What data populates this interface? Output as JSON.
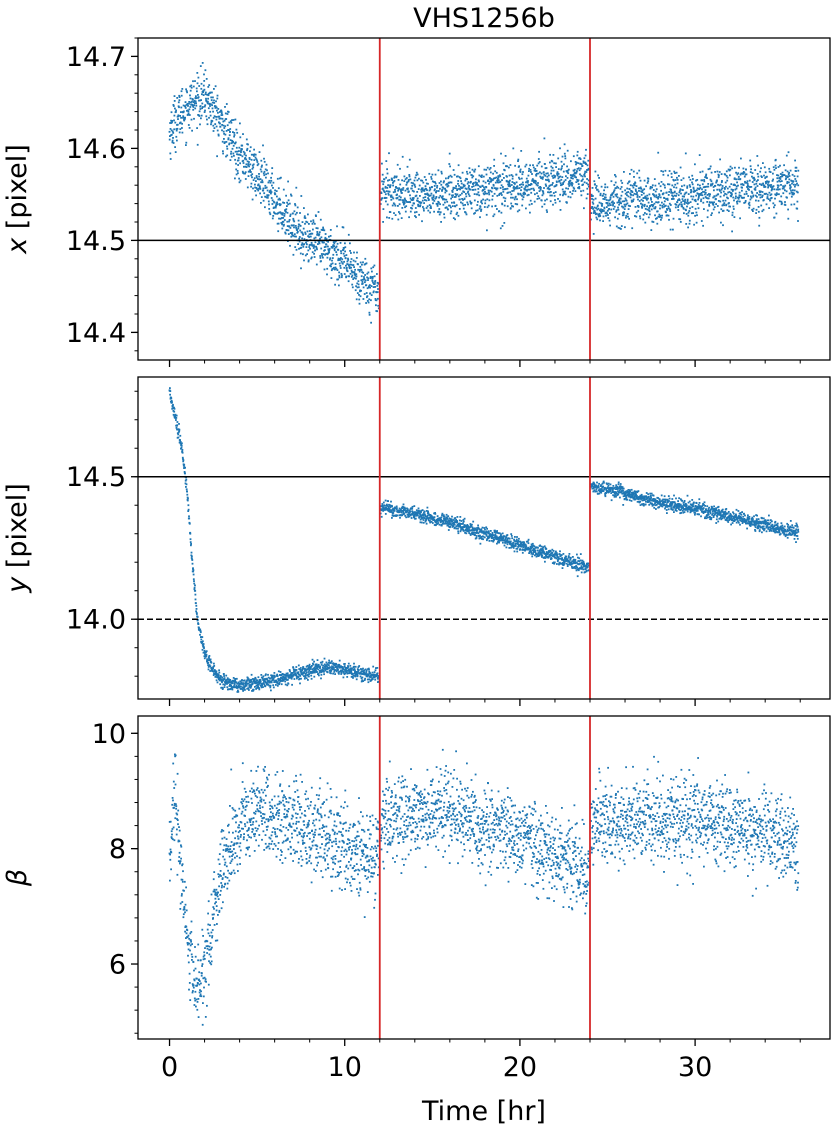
{
  "figure": {
    "title": "VHS1256b",
    "xlabel": "Time [hr]"
  },
  "colors": {
    "points": "#1f77b4",
    "segment_lines": "#d62728",
    "reference_lines": "#000000"
  },
  "chart_data": [
    {
      "type": "scatter",
      "title": "VHS1256b",
      "xlabel": "",
      "ylabel_var": "x",
      "ylabel_unit": " [pixel]",
      "xlim": [
        -1.8,
        37.7
      ],
      "ylim": [
        14.37,
        14.72
      ],
      "yticks": [
        14.4,
        14.5,
        14.6,
        14.7
      ],
      "ytick_labels": [
        "14.4",
        "14.5",
        "14.6",
        "14.7"
      ],
      "minor_ystep": 0.02,
      "hlines": [
        {
          "y": 14.5,
          "style": "solid"
        }
      ],
      "vlines": [
        12,
        24
      ],
      "trend_x": [
        0,
        0.3,
        1,
        2,
        3,
        4,
        5,
        6,
        7,
        8,
        9,
        10,
        11,
        11.95,
        12.05,
        14,
        16,
        18,
        20,
        22,
        23.95,
        24.05,
        26,
        28,
        30,
        32,
        34,
        35.9
      ],
      "trend_y": [
        14.615,
        14.63,
        14.645,
        14.658,
        14.625,
        14.595,
        14.57,
        14.545,
        14.52,
        14.5,
        14.49,
        14.475,
        14.458,
        14.445,
        14.555,
        14.55,
        14.55,
        14.555,
        14.56,
        14.565,
        14.575,
        14.54,
        14.545,
        14.545,
        14.55,
        14.555,
        14.558,
        14.56
      ],
      "scatter_sigma": 0.014
    },
    {
      "type": "scatter",
      "xlabel": "",
      "ylabel_var": "y",
      "ylabel_unit": " [pixel]",
      "xlim": [
        -1.8,
        37.7
      ],
      "ylim": [
        13.72,
        14.85
      ],
      "yticks": [
        14.0,
        14.5
      ],
      "ytick_labels": [
        "14.0",
        "14.5"
      ],
      "minor_ystep": 0.1,
      "hlines": [
        {
          "y": 14.5,
          "style": "solid"
        },
        {
          "y": 14.0,
          "style": "dashed"
        }
      ],
      "vlines": [
        12,
        24
      ],
      "trend_x": [
        0,
        0.3,
        0.7,
        1.0,
        1.3,
        1.6,
        2.0,
        2.5,
        3,
        4,
        5,
        6,
        7,
        8,
        9,
        10,
        11,
        11.95,
        12.05,
        14,
        16,
        18,
        20,
        22,
        23.95,
        24.05,
        26,
        28,
        30,
        32,
        34,
        35.9
      ],
      "trend_y": [
        14.8,
        14.72,
        14.6,
        14.45,
        14.2,
        14.0,
        13.88,
        13.82,
        13.78,
        13.77,
        13.775,
        13.79,
        13.8,
        13.82,
        13.83,
        13.82,
        13.81,
        13.8,
        14.39,
        14.37,
        14.34,
        14.3,
        14.26,
        14.22,
        14.18,
        14.47,
        14.44,
        14.41,
        14.39,
        14.36,
        14.33,
        14.3
      ],
      "scatter_sigma": 0.012
    },
    {
      "type": "scatter",
      "xlabel": "Time [hr]",
      "ylabel_var": "β",
      "ylabel_unit": "",
      "xlim": [
        -1.8,
        37.7
      ],
      "ylim": [
        4.7,
        10.3
      ],
      "yticks": [
        6,
        8,
        10
      ],
      "ytick_labels": [
        "6",
        "8",
        "10"
      ],
      "minor_ystep": 0.4,
      "hlines": [],
      "vlines": [
        12,
        24
      ],
      "xticks": [
        0,
        10,
        20,
        30
      ],
      "xtick_labels": [
        "0",
        "10",
        "20",
        "30"
      ],
      "trend_x": [
        0,
        0.3,
        0.6,
        1.0,
        1.5,
        2.0,
        2.5,
        3,
        4,
        5,
        6,
        7,
        8,
        9,
        10,
        11,
        11.95,
        12.05,
        14,
        16,
        18,
        20,
        22,
        23.95,
        24.05,
        26,
        28,
        30,
        32,
        34,
        35.9
      ],
      "trend_y": [
        7.8,
        8.9,
        7.8,
        6.5,
        5.6,
        5.8,
        6.8,
        7.6,
        8.3,
        8.7,
        8.6,
        8.5,
        8.3,
        8.2,
        8.0,
        7.9,
        7.8,
        8.5,
        8.6,
        8.6,
        8.4,
        8.2,
        7.9,
        7.5,
        8.4,
        8.5,
        8.5,
        8.5,
        8.4,
        8.3,
        8.0
      ],
      "scatter_sigma": 0.36
    }
  ]
}
